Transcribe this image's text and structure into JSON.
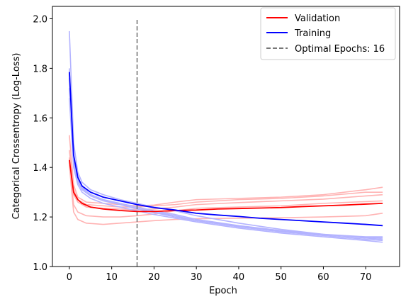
{
  "chart_data": {
    "type": "line",
    "xlabel": "Epoch",
    "ylabel": "Categorical Crossentropy (Log-Loss)",
    "xlim": [
      -4,
      78
    ],
    "ylim": [
      1.0,
      2.05
    ],
    "xticks": [
      0,
      10,
      20,
      30,
      40,
      50,
      60,
      70
    ],
    "yticks": [
      1.0,
      1.2,
      1.4,
      1.6,
      1.8,
      2.0
    ],
    "grid": false,
    "legend_position": "top-right",
    "legend": [
      {
        "label": "Validation",
        "color": "#ff0000",
        "style": "solid"
      },
      {
        "label": "Training",
        "color": "#0000ff",
        "style": "solid"
      },
      {
        "label": "Optimal Epochs: 16",
        "color": "#777777",
        "style": "dashed"
      }
    ],
    "optimal_epoch": 16,
    "optimal_line_range": [
      1.0,
      2.0
    ],
    "mean_series": [
      {
        "label": "Validation",
        "color": "#ff0000",
        "x": [
          0,
          1,
          2,
          3,
          5,
          8,
          12,
          16,
          20,
          25,
          30,
          35,
          40,
          45,
          50,
          55,
          60,
          65,
          70,
          74
        ],
        "y": [
          1.43,
          1.3,
          1.27,
          1.255,
          1.24,
          1.232,
          1.226,
          1.222,
          1.222,
          1.226,
          1.228,
          1.232,
          1.234,
          1.236,
          1.238,
          1.242,
          1.245,
          1.248,
          1.252,
          1.255
        ]
      },
      {
        "label": "Training",
        "color": "#0000ff",
        "x": [
          0,
          1,
          2,
          3,
          5,
          8,
          12,
          16,
          20,
          25,
          30,
          35,
          40,
          45,
          50,
          55,
          60,
          65,
          70,
          74
        ],
        "y": [
          1.785,
          1.45,
          1.36,
          1.325,
          1.3,
          1.28,
          1.265,
          1.25,
          1.238,
          1.228,
          1.215,
          1.208,
          1.202,
          1.195,
          1.19,
          1.185,
          1.18,
          1.175,
          1.17,
          1.165
        ]
      }
    ],
    "fold_series": [
      {
        "kind": "validation",
        "x": [
          0,
          1,
          2,
          4,
          8,
          12,
          16,
          20,
          25,
          30,
          40,
          50,
          60,
          70,
          74
        ],
        "y": [
          1.53,
          1.33,
          1.28,
          1.26,
          1.255,
          1.25,
          1.245,
          1.248,
          1.26,
          1.27,
          1.275,
          1.28,
          1.29,
          1.31,
          1.32
        ]
      },
      {
        "kind": "validation",
        "x": [
          0,
          1,
          2,
          4,
          8,
          12,
          16,
          20,
          25,
          30,
          40,
          50,
          60,
          70,
          74
        ],
        "y": [
          1.47,
          1.31,
          1.27,
          1.25,
          1.245,
          1.24,
          1.24,
          1.245,
          1.25,
          1.26,
          1.27,
          1.275,
          1.285,
          1.3,
          1.3
        ]
      },
      {
        "kind": "validation",
        "x": [
          0,
          1,
          2,
          4,
          8,
          12,
          16,
          20,
          25,
          30,
          40,
          50,
          60,
          70,
          74
        ],
        "y": [
          1.44,
          1.29,
          1.26,
          1.24,
          1.235,
          1.232,
          1.23,
          1.232,
          1.24,
          1.25,
          1.258,
          1.265,
          1.272,
          1.285,
          1.29
        ]
      },
      {
        "kind": "validation",
        "x": [
          0,
          1,
          2,
          4,
          8,
          12,
          16,
          20,
          25,
          30,
          40,
          50,
          60,
          70,
          74
        ],
        "y": [
          1.42,
          1.25,
          1.22,
          1.205,
          1.2,
          1.2,
          1.205,
          1.212,
          1.225,
          1.235,
          1.24,
          1.245,
          1.255,
          1.262,
          1.265
        ]
      },
      {
        "kind": "validation",
        "x": [
          0,
          1,
          2,
          4,
          8,
          12,
          16,
          20,
          25,
          30,
          40,
          50,
          60,
          70,
          74
        ],
        "y": [
          1.41,
          1.22,
          1.19,
          1.175,
          1.17,
          1.175,
          1.18,
          1.185,
          1.19,
          1.193,
          1.195,
          1.197,
          1.2,
          1.205,
          1.215
        ]
      },
      {
        "kind": "training",
        "x": [
          0,
          1,
          2,
          3,
          5,
          8,
          12,
          16,
          20,
          25,
          30,
          40,
          50,
          60,
          70,
          74
        ],
        "y": [
          1.95,
          1.5,
          1.38,
          1.34,
          1.31,
          1.29,
          1.27,
          1.255,
          1.24,
          1.225,
          1.205,
          1.175,
          1.15,
          1.13,
          1.115,
          1.11
        ]
      },
      {
        "kind": "training",
        "x": [
          0,
          1,
          2,
          3,
          5,
          8,
          12,
          16,
          20,
          25,
          30,
          40,
          50,
          60,
          70,
          74
        ],
        "y": [
          1.8,
          1.45,
          1.36,
          1.32,
          1.29,
          1.27,
          1.255,
          1.24,
          1.225,
          1.21,
          1.19,
          1.165,
          1.145,
          1.13,
          1.12,
          1.12
        ]
      },
      {
        "kind": "training",
        "x": [
          0,
          1,
          2,
          3,
          5,
          8,
          12,
          16,
          20,
          25,
          30,
          40,
          50,
          60,
          70,
          74
        ],
        "y": [
          1.72,
          1.42,
          1.34,
          1.31,
          1.285,
          1.265,
          1.25,
          1.235,
          1.22,
          1.205,
          1.185,
          1.16,
          1.14,
          1.125,
          1.11,
          1.105
        ]
      },
      {
        "kind": "training",
        "x": [
          0,
          1,
          2,
          3,
          5,
          8,
          12,
          16,
          20,
          25,
          30,
          40,
          50,
          60,
          70,
          74
        ],
        "y": [
          1.68,
          1.4,
          1.33,
          1.3,
          1.275,
          1.255,
          1.24,
          1.225,
          1.21,
          1.195,
          1.18,
          1.155,
          1.135,
          1.12,
          1.105,
          1.098
        ]
      },
      {
        "kind": "training",
        "x": [
          0,
          1,
          2,
          3,
          5,
          8,
          12,
          16,
          20,
          25,
          30,
          40,
          50,
          60,
          70,
          74
        ],
        "y": [
          1.76,
          1.44,
          1.35,
          1.315,
          1.29,
          1.27,
          1.25,
          1.232,
          1.218,
          1.2,
          1.185,
          1.162,
          1.142,
          1.128,
          1.118,
          1.115
        ]
      }
    ],
    "colors": {
      "validation": "#ff0000",
      "training": "#0000ff",
      "validation_fold": "#ffb3b3",
      "training_fold": "#b3b3ff",
      "optimal_line": "#777777",
      "axes": "#000000",
      "background": "#ffffff"
    }
  }
}
